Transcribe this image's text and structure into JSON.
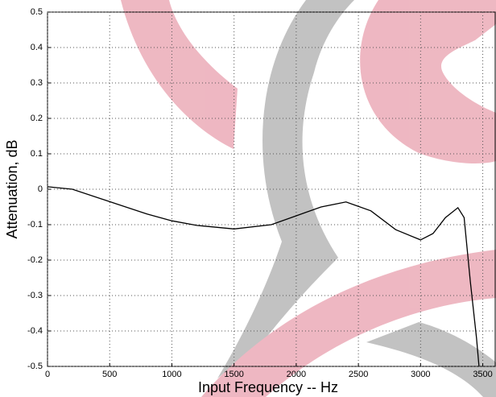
{
  "chart_data": {
    "type": "line",
    "xlabel": "Input Frequency -- Hz",
    "ylabel": "Attenuation, dB",
    "x": [
      0,
      200,
      500,
      800,
      1000,
      1200,
      1500,
      1800,
      2000,
      2200,
      2400,
      2600,
      2800,
      3000,
      3100,
      3200,
      3300,
      3350,
      3400,
      3450,
      3470
    ],
    "values": [
      0.007,
      0.0,
      -0.035,
      -0.07,
      -0.089,
      -0.102,
      -0.112,
      -0.1,
      -0.075,
      -0.05,
      -0.036,
      -0.061,
      -0.114,
      -0.143,
      -0.125,
      -0.08,
      -0.052,
      -0.08,
      -0.26,
      -0.42,
      -0.5
    ],
    "color": "#000000",
    "xlim": [
      0,
      3600
    ],
    "xticks": [
      0,
      500,
      1000,
      1500,
      2000,
      2500,
      3000,
      3500
    ],
    "ylim": [
      -0.5,
      0.5
    ],
    "yticks": [
      -0.5,
      -0.4,
      -0.3,
      -0.2,
      -0.1,
      0,
      0.1,
      0.2,
      0.3,
      0.4,
      0.5
    ],
    "grid": true
  }
}
